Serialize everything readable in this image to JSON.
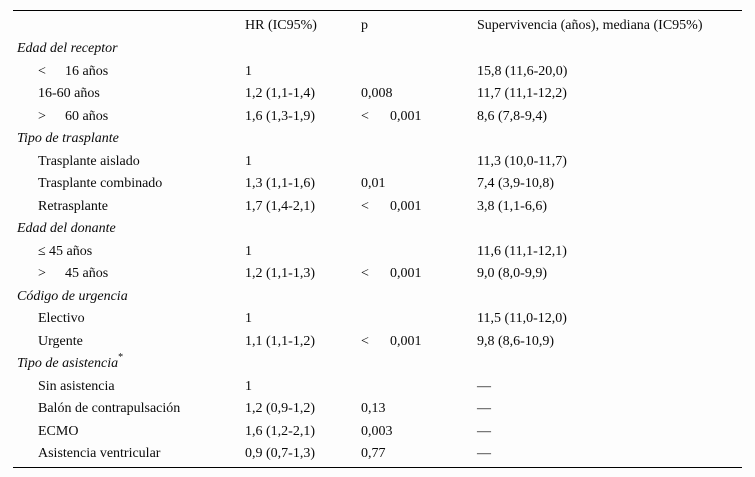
{
  "header": {
    "col_label": "",
    "col_hr": "HR (IC95%)",
    "col_p": "p",
    "col_surv": "Supervivencia (años), mediana (IC95%)"
  },
  "sections": [
    {
      "title": "Edad del receptor",
      "title_sup": "",
      "rows": [
        {
          "prefix": "<",
          "label": "16 años",
          "hr": "1",
          "p_lt": "",
          "p": "",
          "surv": "15,8 (11,6-20,0)"
        },
        {
          "prefix": "",
          "label": "16-60 años",
          "hr": "1,2 (1,1-1,4)",
          "p_lt": "",
          "p": "0,008",
          "surv": "11,7 (11,1-12,2)"
        },
        {
          "prefix": ">",
          "label": "60 años",
          "hr": "1,6 (1,3-1,9)",
          "p_lt": "<",
          "p": "0,001",
          "surv": "8,6 (7,8-9,4)"
        }
      ]
    },
    {
      "title": "Tipo de trasplante",
      "title_sup": "",
      "rows": [
        {
          "prefix": "",
          "label": "Trasplante aislado",
          "hr": "1",
          "p_lt": "",
          "p": "",
          "surv": "11,3 (10,0-11,7)"
        },
        {
          "prefix": "",
          "label": "Trasplante combinado",
          "hr": "1,3 (1,1-1,6)",
          "p_lt": "",
          "p": "0,01",
          "surv": "7,4 (3,9-10,8)"
        },
        {
          "prefix": "",
          "label": "Retrasplante",
          "hr": "1,7 (1,4-2,1)",
          "p_lt": "<",
          "p": "0,001",
          "surv": "3,8 (1,1-6,6)"
        }
      ]
    },
    {
      "title": "Edad del donante",
      "title_sup": "",
      "rows": [
        {
          "prefix": "≤",
          "label": "45 años",
          "hr": "1",
          "p_lt": "",
          "p": "",
          "surv": "11,6 (11,1-12,1)"
        },
        {
          "prefix": ">",
          "label": "45 años",
          "hr": "1,2 (1,1-1,3)",
          "p_lt": "<",
          "p": "0,001",
          "surv": "9,0 (8,0-9,9)"
        }
      ]
    },
    {
      "title": "Código de urgencia",
      "title_sup": "",
      "rows": [
        {
          "prefix": "",
          "label": "Electivo",
          "hr": "1",
          "p_lt": "",
          "p": "",
          "surv": "11,5 (11,0-12,0)"
        },
        {
          "prefix": "",
          "label": "Urgente",
          "hr": "1,1 (1,1-1,2)",
          "p_lt": "<",
          "p": "0,001",
          "surv": "9,8 (8,6-10,9)"
        }
      ]
    },
    {
      "title": "Tipo de asistencia",
      "title_sup": "*",
      "rows": [
        {
          "prefix": "",
          "label": "Sin asistencia",
          "hr": "1",
          "p_lt": "",
          "p": "",
          "surv": "—"
        },
        {
          "prefix": "",
          "label": "Balón de contrapulsación",
          "hr": "1,2 (0,9-1,2)",
          "p_lt": "",
          "p": "0,13",
          "surv": "—"
        },
        {
          "prefix": "",
          "label": "ECMO",
          "hr": "1,6 (1,2-2,1)",
          "p_lt": "",
          "p": "0,003",
          "surv": "—"
        },
        {
          "prefix": "",
          "label": "Asistencia ventricular",
          "hr": "0,9 (0,7-1,3)",
          "p_lt": "",
          "p": "0,77",
          "surv": "—"
        }
      ]
    }
  ]
}
